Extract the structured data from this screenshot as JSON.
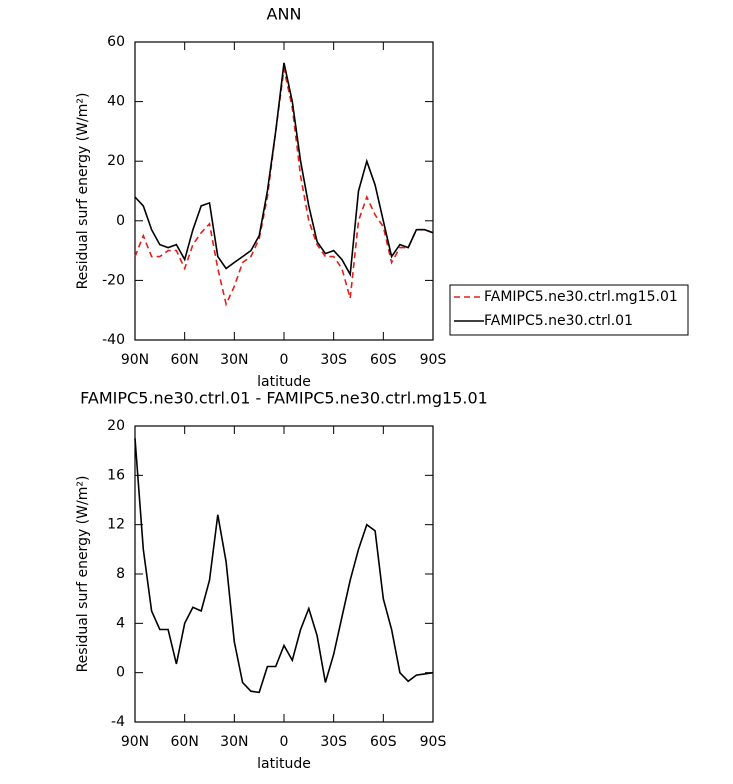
{
  "chart_data": [
    {
      "type": "line",
      "title": "ANN",
      "xlabel": "latitude",
      "ylabel": "Residual surf energy (W/m²)",
      "x": [
        90,
        85,
        80,
        75,
        70,
        65,
        60,
        55,
        50,
        45,
        40,
        35,
        30,
        25,
        20,
        15,
        10,
        5,
        0,
        -5,
        -10,
        -15,
        -20,
        -25,
        -30,
        -35,
        -40,
        -45,
        -50,
        -55,
        -60,
        -65,
        -70,
        -75,
        -80,
        -85,
        -90
      ],
      "series": [
        {
          "name": "FAMIPC5.ne30.ctrl.mg15.01",
          "color": "#e0201b",
          "style": "dashed",
          "values": [
            -12,
            -5,
            -12,
            -12,
            -10,
            -10,
            -16,
            -8,
            -4,
            -1,
            -16,
            -28,
            -22,
            -14,
            -12,
            -6,
            8,
            30,
            51,
            38,
            15,
            0,
            -8,
            -12,
            -12,
            -16,
            -26,
            0,
            8,
            2,
            -2,
            -14,
            -9,
            -9,
            -3,
            -3,
            -4
          ]
        },
        {
          "name": "FAMIPC5.ne30.ctrl.01",
          "color": "#000000",
          "style": "solid",
          "values": [
            8,
            5,
            -3,
            -8,
            -9,
            -8,
            -13,
            -3,
            5,
            6,
            -12,
            -16,
            -14,
            -12,
            -10,
            -5,
            10,
            30,
            53,
            40,
            20,
            5,
            -7,
            -11,
            -10,
            -13,
            -18,
            10,
            20,
            12,
            0,
            -12,
            -8,
            -9,
            -3,
            -3,
            -4
          ]
        }
      ],
      "xlim": [
        90,
        -90
      ],
      "xticks": [
        {
          "value": 90,
          "label": "90N"
        },
        {
          "value": 60,
          "label": "60N"
        },
        {
          "value": 30,
          "label": "30N"
        },
        0,
        {
          "value": -30,
          "label": "30S"
        },
        {
          "value": -60,
          "label": "60S"
        },
        {
          "value": -90,
          "label": "90S"
        }
      ],
      "ylim": [
        -40,
        60
      ],
      "yticks": [
        -40,
        -20,
        0,
        20,
        40,
        60
      ],
      "legend": "right"
    },
    {
      "type": "line",
      "title": "FAMIPC5.ne30.ctrl.01 - FAMIPC5.ne30.ctrl.mg15.01",
      "xlabel": "latitude",
      "ylabel": "Residual surf energy (W/m²)",
      "x": [
        90,
        85,
        80,
        75,
        70,
        65,
        60,
        55,
        50,
        45,
        40,
        35,
        30,
        25,
        20,
        15,
        10,
        5,
        0,
        -5,
        -10,
        -15,
        -20,
        -25,
        -30,
        -35,
        -40,
        -45,
        -50,
        -55,
        -60,
        -65,
        -70,
        -75,
        -80,
        -85,
        -90
      ],
      "values": [
        19,
        10,
        5,
        3.5,
        3.5,
        0.7,
        4,
        5.3,
        5,
        7.5,
        12.8,
        9,
        2.5,
        -0.8,
        -1.5,
        -1.6,
        0.5,
        0.5,
        2.2,
        1,
        3.5,
        5.2,
        3,
        -0.8,
        1.5,
        4.5,
        7.5,
        10,
        12,
        11.5,
        6,
        3.5,
        0,
        -0.7,
        -0.2,
        -0.1,
        0
      ],
      "color": "#000000",
      "xlim": [
        90,
        -90
      ],
      "xticks": [
        {
          "value": 90,
          "label": "90N"
        },
        {
          "value": 60,
          "label": "60N"
        },
        {
          "value": 30,
          "label": "30N"
        },
        0,
        {
          "value": -30,
          "label": "30S"
        },
        {
          "value": -60,
          "label": "60S"
        },
        {
          "value": -90,
          "label": "90S"
        }
      ],
      "ylim": [
        -4,
        20
      ],
      "yticks": [
        -4,
        0,
        4,
        8,
        12,
        16,
        20
      ]
    }
  ]
}
